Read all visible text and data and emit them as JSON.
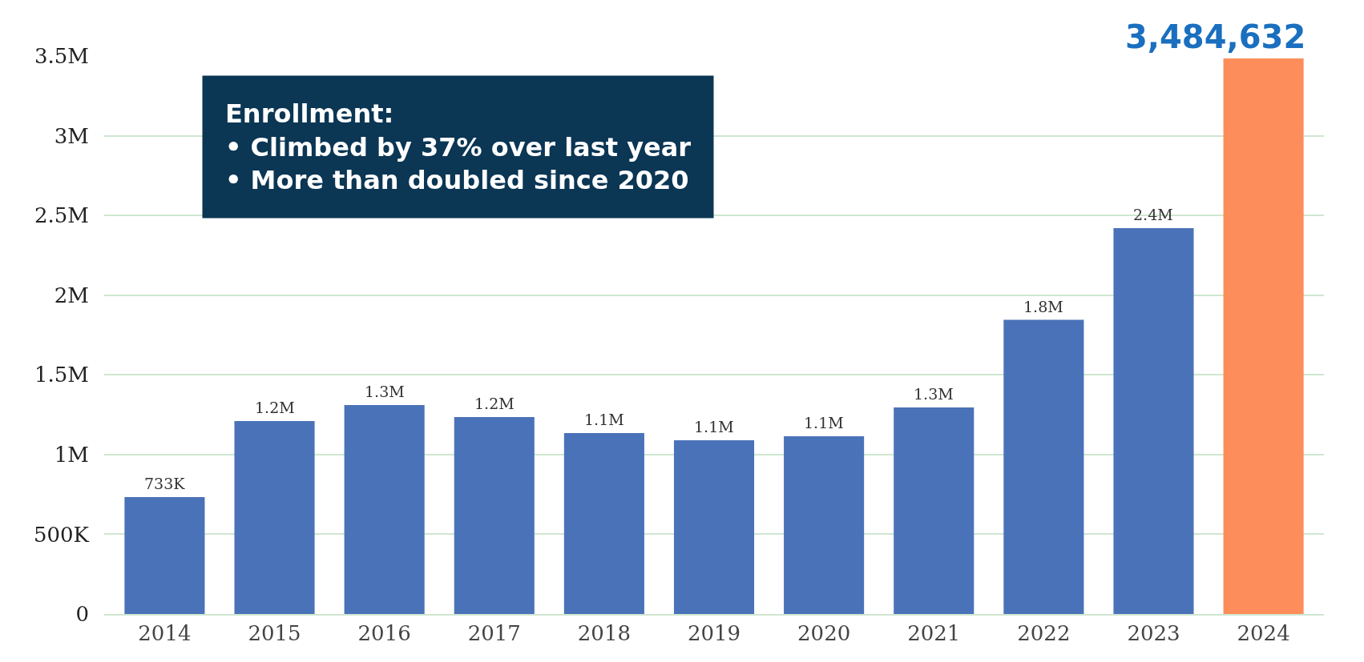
{
  "chart_data": {
    "type": "bar",
    "categories": [
      "2014",
      "2015",
      "2016",
      "2017",
      "2018",
      "2019",
      "2020",
      "2021",
      "2022",
      "2023",
      "2024"
    ],
    "values": [
      733000,
      1210000,
      1310000,
      1235000,
      1135000,
      1090000,
      1115000,
      1295000,
      1845000,
      2420000,
      3484632
    ],
    "colors": [
      "#4a72b8",
      "#4a72b8",
      "#4a72b8",
      "#4a72b8",
      "#4a72b8",
      "#4a72b8",
      "#4a72b8",
      "#4a72b8",
      "#4a72b8",
      "#4a72b8",
      "#fd8d5a"
    ],
    "value_labels": [
      "733K",
      "1.2M",
      "1.3M",
      "1.2M",
      "1.1M",
      "1.1M",
      "1.1M",
      "1.3M",
      "1.8M",
      "2.4M",
      "3,484,632"
    ],
    "ylim": [
      0,
      3500000
    ],
    "yticks": [
      0,
      {
        "value": 500000,
        "label": "500K"
      },
      {
        "value": 1000000,
        "label": "1M"
      },
      {
        "value": 1500000,
        "label": "1.5M"
      },
      {
        "value": 2000000,
        "label": "2M"
      },
      {
        "value": 2500000,
        "label": "2.5M"
      },
      {
        "value": 3000000,
        "label": "3M"
      },
      {
        "value": 3500000,
        "label": "3.5M"
      }
    ],
    "grid": "y",
    "annotations": [
      "Enrollment:\n• Climbed by 37% over last year\n• More than doubled since 2020"
    ]
  }
}
